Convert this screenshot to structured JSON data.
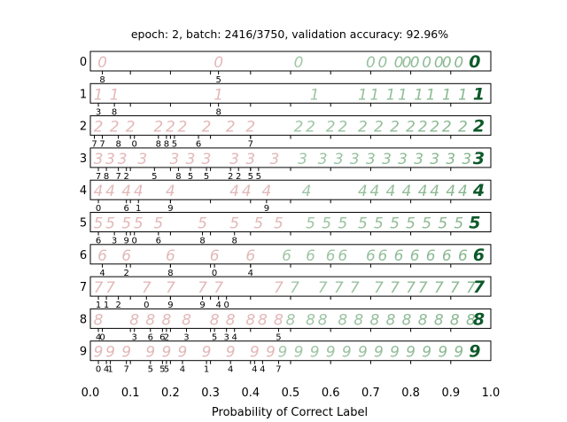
{
  "chart_data": {
    "type": "scatter",
    "title": "epoch: 2, batch: 2416/3750, validation accuracy: 92.96%",
    "xlabel": "Probability of Correct Label",
    "ylabel": "",
    "xlim": [
      0.0,
      1.0
    ],
    "x_ticks": [
      "0.0",
      "0.1",
      "0.2",
      "0.3",
      "0.4",
      "0.5",
      "0.6",
      "0.7",
      "0.8",
      "0.9",
      "1.0"
    ],
    "grid": false,
    "legend": "none",
    "colors": {
      "wrong": "#d9a0a0",
      "right": "#6fa878",
      "best": "#0d5a2a",
      "frame": "#000000"
    },
    "rows": [
      {
        "label": "0",
        "wrong_predictions": [
          {
            "x": 0.03,
            "label": "8"
          },
          {
            "x": 0.32,
            "label": "5"
          }
        ],
        "samples": [
          0.03,
          0.32,
          0.52,
          0.7,
          0.73,
          0.77,
          0.79,
          0.81,
          0.84,
          0.87,
          0.89,
          0.92,
          0.96
        ]
      },
      {
        "label": "1",
        "wrong_predictions": [
          {
            "x": 0.02,
            "label": "3"
          },
          {
            "x": 0.06,
            "label": "8"
          },
          {
            "x": 0.32,
            "label": "8"
          }
        ],
        "samples": [
          0.02,
          0.06,
          0.32,
          0.56,
          0.68,
          0.71,
          0.75,
          0.78,
          0.82,
          0.85,
          0.89,
          0.93,
          0.97
        ]
      },
      {
        "label": "2",
        "wrong_predictions": [
          {
            "x": 0.01,
            "label": "7"
          },
          {
            "x": 0.03,
            "label": "7"
          },
          {
            "x": 0.07,
            "label": "8"
          },
          {
            "x": 0.11,
            "label": "0"
          },
          {
            "x": 0.17,
            "label": "8"
          },
          {
            "x": 0.19,
            "label": "8"
          },
          {
            "x": 0.21,
            "label": "5"
          },
          {
            "x": 0.27,
            "label": "6"
          },
          {
            "x": 0.4,
            "label": "7"
          }
        ],
        "samples": [
          0.02,
          0.06,
          0.1,
          0.17,
          0.2,
          0.23,
          0.29,
          0.35,
          0.4,
          0.52,
          0.55,
          0.6,
          0.63,
          0.68,
          0.72,
          0.76,
          0.8,
          0.83,
          0.86,
          0.89,
          0.93,
          0.97
        ]
      },
      {
        "label": "3",
        "wrong_predictions": [
          {
            "x": 0.02,
            "label": "7"
          },
          {
            "x": 0.04,
            "label": "8"
          },
          {
            "x": 0.07,
            "label": "7"
          },
          {
            "x": 0.09,
            "label": "2"
          },
          {
            "x": 0.16,
            "label": "5"
          },
          {
            "x": 0.22,
            "label": "8"
          },
          {
            "x": 0.25,
            "label": "5"
          },
          {
            "x": 0.29,
            "label": "5"
          },
          {
            "x": 0.35,
            "label": "2"
          },
          {
            "x": 0.37,
            "label": "2"
          },
          {
            "x": 0.4,
            "label": "5"
          },
          {
            "x": 0.42,
            "label": "5"
          }
        ],
        "samples": [
          0.02,
          0.05,
          0.08,
          0.13,
          0.21,
          0.25,
          0.29,
          0.36,
          0.4,
          0.46,
          0.53,
          0.58,
          0.62,
          0.66,
          0.7,
          0.74,
          0.78,
          0.82,
          0.86,
          0.9,
          0.94,
          0.97
        ]
      },
      {
        "label": "4",
        "wrong_predictions": [
          {
            "x": 0.02,
            "label": "0"
          },
          {
            "x": 0.09,
            "label": "6"
          },
          {
            "x": 0.12,
            "label": "1"
          },
          {
            "x": 0.2,
            "label": "9"
          },
          {
            "x": 0.44,
            "label": "9"
          }
        ],
        "samples": [
          0.02,
          0.05,
          0.09,
          0.12,
          0.2,
          0.36,
          0.39,
          0.44,
          0.54,
          0.68,
          0.71,
          0.75,
          0.79,
          0.83,
          0.86,
          0.9,
          0.93,
          0.97
        ]
      },
      {
        "label": "5",
        "wrong_predictions": [
          {
            "x": 0.02,
            "label": "6"
          },
          {
            "x": 0.06,
            "label": "3"
          },
          {
            "x": 0.09,
            "label": "9"
          },
          {
            "x": 0.11,
            "label": "0"
          },
          {
            "x": 0.17,
            "label": "6"
          },
          {
            "x": 0.28,
            "label": "8"
          },
          {
            "x": 0.36,
            "label": "8"
          }
        ],
        "samples": [
          0.02,
          0.05,
          0.09,
          0.12,
          0.17,
          0.28,
          0.36,
          0.42,
          0.47,
          0.55,
          0.59,
          0.63,
          0.68,
          0.72,
          0.76,
          0.8,
          0.84,
          0.88,
          0.92,
          0.96
        ]
      },
      {
        "label": "6",
        "wrong_predictions": [
          {
            "x": 0.03,
            "label": "4"
          },
          {
            "x": 0.09,
            "label": "2"
          },
          {
            "x": 0.2,
            "label": "8"
          },
          {
            "x": 0.31,
            "label": "0"
          },
          {
            "x": 0.4,
            "label": "4"
          }
        ],
        "samples": [
          0.03,
          0.09,
          0.2,
          0.31,
          0.4,
          0.49,
          0.55,
          0.6,
          0.63,
          0.7,
          0.73,
          0.77,
          0.81,
          0.85,
          0.89,
          0.93,
          0.97
        ]
      },
      {
        "label": "7",
        "wrong_predictions": [
          {
            "x": 0.02,
            "label": "1"
          },
          {
            "x": 0.04,
            "label": "1"
          },
          {
            "x": 0.07,
            "label": "2"
          },
          {
            "x": 0.14,
            "label": "0"
          },
          {
            "x": 0.2,
            "label": "9"
          },
          {
            "x": 0.28,
            "label": "9"
          },
          {
            "x": 0.32,
            "label": "4"
          },
          {
            "x": 0.34,
            "label": "0"
          }
        ],
        "samples": [
          0.02,
          0.05,
          0.14,
          0.2,
          0.28,
          0.32,
          0.47,
          0.51,
          0.58,
          0.62,
          0.66,
          0.72,
          0.76,
          0.8,
          0.83,
          0.87,
          0.91,
          0.95,
          0.97
        ]
      },
      {
        "label": "8",
        "wrong_predictions": [
          {
            "x": 0.02,
            "label": "4"
          },
          {
            "x": 0.03,
            "label": "0"
          },
          {
            "x": 0.11,
            "label": "3"
          },
          {
            "x": 0.15,
            "label": "6"
          },
          {
            "x": 0.18,
            "label": "6"
          },
          {
            "x": 0.19,
            "label": "2"
          },
          {
            "x": 0.24,
            "label": "3"
          },
          {
            "x": 0.31,
            "label": "5"
          },
          {
            "x": 0.34,
            "label": "3"
          },
          {
            "x": 0.36,
            "label": "4"
          },
          {
            "x": 0.47,
            "label": "5"
          }
        ],
        "samples": [
          0.02,
          0.11,
          0.15,
          0.19,
          0.24,
          0.31,
          0.35,
          0.4,
          0.43,
          0.47,
          0.5,
          0.55,
          0.58,
          0.63,
          0.67,
          0.71,
          0.75,
          0.79,
          0.83,
          0.87,
          0.91,
          0.95,
          0.97
        ]
      },
      {
        "label": "9",
        "wrong_predictions": [
          {
            "x": 0.02,
            "label": "0"
          },
          {
            "x": 0.04,
            "label": "4"
          },
          {
            "x": 0.05,
            "label": "1"
          },
          {
            "x": 0.09,
            "label": "7"
          },
          {
            "x": 0.15,
            "label": "5"
          },
          {
            "x": 0.18,
            "label": "5"
          },
          {
            "x": 0.19,
            "label": "5"
          },
          {
            "x": 0.23,
            "label": "4"
          },
          {
            "x": 0.29,
            "label": "1"
          },
          {
            "x": 0.35,
            "label": "4"
          },
          {
            "x": 0.41,
            "label": "4"
          },
          {
            "x": 0.43,
            "label": "4"
          },
          {
            "x": 0.47,
            "label": "7"
          }
        ],
        "samples": [
          0.02,
          0.05,
          0.09,
          0.15,
          0.19,
          0.23,
          0.29,
          0.35,
          0.41,
          0.45,
          0.48,
          0.52,
          0.56,
          0.6,
          0.64,
          0.68,
          0.72,
          0.76,
          0.8,
          0.84,
          0.88,
          0.92,
          0.96
        ]
      }
    ]
  }
}
